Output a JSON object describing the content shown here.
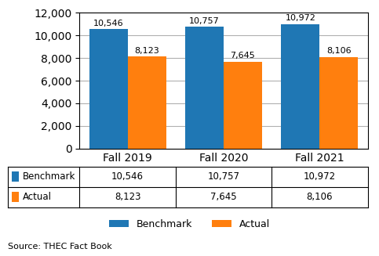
{
  "chart_data": {
    "type": "bar",
    "categories": [
      "Fall 2019",
      "Fall 2020",
      "Fall 2021"
    ],
    "series": [
      {
        "name": "Benchmark",
        "values": [
          10546,
          10757,
          10972
        ],
        "value_labels": [
          "10,546",
          "10,757",
          "10,972"
        ]
      },
      {
        "name": "Actual",
        "values": [
          8123,
          7645,
          8106
        ],
        "value_labels": [
          "8,123",
          "7,645",
          "8,106"
        ]
      }
    ],
    "ylim": [
      0,
      12000
    ],
    "yticks": [
      0,
      {
        "value": 2000,
        "label": "2,000"
      },
      {
        "value": 4000,
        "label": "4,000"
      },
      {
        "value": 6000,
        "label": "6,000"
      },
      {
        "value": 8000,
        "label": "8,000"
      },
      {
        "value": 10000,
        "label": "10,000"
      },
      {
        "value": 12000,
        "label": "12,000"
      }
    ],
    "grid": true,
    "legend": "lower center",
    "data_labels": true,
    "annotations": [
      "Source: THEC Fact Book"
    ]
  }
}
